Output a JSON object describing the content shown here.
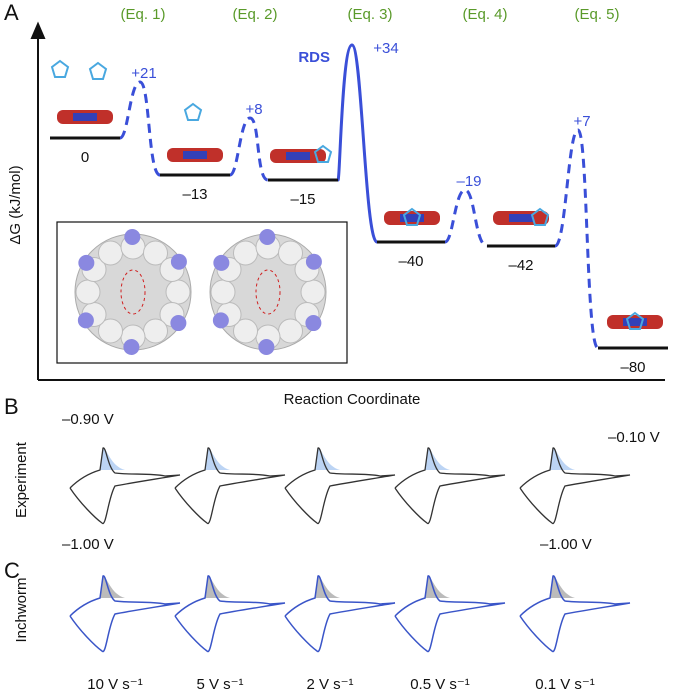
{
  "panel_a": {
    "letter": "A",
    "equations": [
      "(Eq. 1)",
      "(Eq. 2)",
      "(Eq. 3)",
      "(Eq. 4)",
      "(Eq. 5)"
    ],
    "y_label": "ΔG (kJ/mol)",
    "x_label": "Reaction Coordinate",
    "rds": "RDS",
    "levels": [
      "0",
      "–13",
      "–15",
      "–40",
      "–42",
      "–80"
    ],
    "barriers": [
      "+21",
      "+8",
      "+34",
      "–19",
      "+7"
    ]
  },
  "panel_b": {
    "letter": "B",
    "side_label": "Experiment",
    "potentials": [
      "–0.90 V",
      "–1.00 V",
      "–0.10 V",
      "–1.00 V"
    ]
  },
  "panel_c": {
    "letter": "C",
    "side_label": "Inchworm",
    "scan_rates": [
      "10 V s⁻¹",
      "5 V s⁻¹",
      "2 V s⁻¹",
      "0.5 V s⁻¹",
      "0.1 V s⁻¹"
    ]
  }
}
